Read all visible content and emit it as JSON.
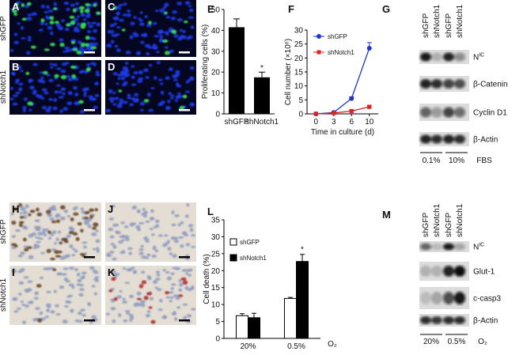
{
  "panel_letters": [
    "A",
    "B",
    "C",
    "D",
    "E",
    "F",
    "G",
    "H",
    "I",
    "J",
    "K",
    "L",
    "M"
  ],
  "images_top": {
    "row_labels": [
      "shGFP",
      "shNotch1"
    ]
  },
  "images_bottom": {
    "row_labels": [
      "shGFP",
      "shNotch1"
    ]
  },
  "chart_data": [
    {
      "type": "bar",
      "ylabel": "Proliferating cells (%)",
      "categories": [
        "shGFP",
        "shNotch1"
      ],
      "values": [
        41.5,
        17.5
      ],
      "errors": [
        4,
        2.5
      ],
      "color": "#000000",
      "ylim": [
        0,
        50
      ],
      "yticks": [
        0,
        10,
        20,
        30,
        40,
        50
      ],
      "annotations": [
        {
          "index": 1,
          "text": "*"
        }
      ]
    },
    {
      "type": "line",
      "xlabel": "Time in culture (d)",
      "ylabel": "Cell number (×10⁶)",
      "categories": [
        "0",
        "3",
        "6",
        "10"
      ],
      "series": [
        {
          "name": "shGFP",
          "color": "#2233cc",
          "marker": "circle",
          "values": [
            0,
            0.5,
            5.5,
            23.5
          ],
          "errors": [
            0,
            0.2,
            0.6,
            2
          ]
        },
        {
          "name": "shNotch1",
          "color": "#e02020",
          "marker": "square",
          "values": [
            0,
            0.3,
            1,
            2.5
          ],
          "errors": [
            0,
            0.1,
            0.2,
            0.6
          ]
        }
      ],
      "ylim": [
        0,
        30
      ],
      "yticks": [
        0,
        5,
        10,
        15,
        20,
        25,
        30
      ],
      "legend": "upper-left"
    },
    {
      "type": "bar",
      "ylabel": "Cell death (%)",
      "xlabel": "O₂",
      "categories": [
        "20%",
        "0.5%"
      ],
      "series": [
        {
          "name": "shGFP",
          "color": "#ffffff",
          "values": [
            6.7,
            11.8
          ],
          "errors": [
            0.6,
            0.3
          ]
        },
        {
          "name": "shNotch1",
          "color": "#000000",
          "values": [
            6.1,
            22.7
          ],
          "errors": [
            1.3,
            2.1
          ]
        }
      ],
      "ylim": [
        0,
        35
      ],
      "yticks": [
        0,
        5,
        10,
        15,
        20,
        25,
        30,
        35
      ],
      "legend": "upper-left",
      "annotations": [
        {
          "index": 1,
          "series": 1,
          "text": "*"
        }
      ]
    }
  ],
  "blots": [
    {
      "lanes": [
        "shGFP",
        "shNotch1",
        "shGFP",
        "shNotch1"
      ],
      "rows": [
        {
          "label": "N",
          "sup": "IC"
        },
        {
          "label": "β-Catenin"
        },
        {
          "label": "Cyclin D1"
        },
        {
          "label": "β-Actin"
        }
      ],
      "groups": [
        "0.1%",
        "10%"
      ],
      "condition": "FBS"
    },
    {
      "lanes": [
        "shGFP",
        "shNotch1",
        "shGFP",
        "shNotch1"
      ],
      "rows": [
        {
          "label": "N",
          "sup": "IC"
        },
        {
          "label": "Glut-1"
        },
        {
          "label": "c-casp3"
        },
        {
          "label": "β-Actin"
        }
      ],
      "groups": [
        "20%",
        "0.5%"
      ],
      "condition": "O₂"
    }
  ]
}
